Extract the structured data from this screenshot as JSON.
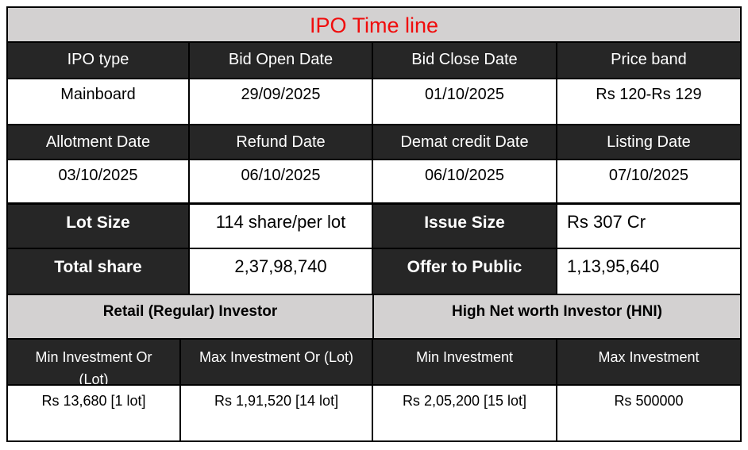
{
  "title": "IPO Time line",
  "colors": {
    "title_text": "#f00c0c",
    "band_bg": "#d3d1d1",
    "header_bg": "#262626",
    "header_text": "#ffffff",
    "border": "#000000"
  },
  "timeline": {
    "headers_row1": [
      "IPO type",
      "Bid Open Date",
      "Bid Close Date",
      "Price band"
    ],
    "values_row1": [
      "Mainboard",
      "29/09/2025",
      "01/10/2025",
      "Rs 120-Rs 129"
    ],
    "headers_row2": [
      "Allotment Date",
      "Refund Date",
      "Demat credit Date",
      "Listing Date"
    ],
    "values_row2": [
      "03/10/2025",
      "06/10/2025",
      "06/10/2025",
      "07/10/2025"
    ]
  },
  "issue_details": {
    "lot_size": {
      "label": "Lot Size",
      "value": "114 share/per lot"
    },
    "issue_size": {
      "label": "Issue Size",
      "value": "Rs 307 Cr"
    },
    "total_share": {
      "label": "Total share",
      "value": "2,37,98,740"
    },
    "offer_to_public": {
      "label": "Offer to Public",
      "value": "1,13,95,640"
    }
  },
  "investors": {
    "retail_title": "Retail (Regular) Investor",
    "hni_title": "High Net worth Investor (HNI)",
    "headers": [
      "Min Investment Or (Lot)",
      "Max Investment Or (Lot)",
      "Min Investment",
      "Max Investment"
    ],
    "values": [
      "Rs 13,680 [1 lot]",
      "Rs 1,91,520 [14 lot]",
      "Rs 2,05,200 [15 lot]",
      "Rs 500000"
    ]
  }
}
